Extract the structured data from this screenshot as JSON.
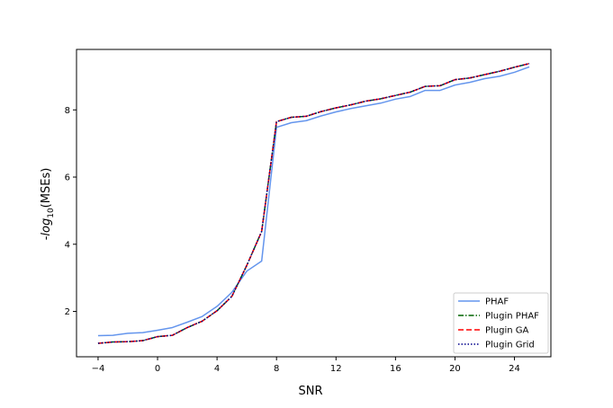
{
  "chart_data": {
    "type": "line",
    "xlabel": "SNR",
    "ylabel_prefix": "-",
    "ylabel_func": "log",
    "ylabel_sub": "10",
    "ylabel_suffix": "(MSEs)",
    "xlim": [
      -5.45,
      26.45
    ],
    "ylim": [
      0.65,
      9.8
    ],
    "xticks": [
      -4,
      0,
      4,
      8,
      12,
      16,
      20,
      24
    ],
    "xtick_labels": [
      "−4",
      "0",
      "4",
      "8",
      "12",
      "16",
      "20",
      "24"
    ],
    "yticks": [
      2,
      4,
      6,
      8
    ],
    "ytick_labels": [
      "2",
      "4",
      "6",
      "8"
    ],
    "grid": false,
    "legend_position": "lower-right",
    "x": [
      -4,
      -3,
      -2,
      -1,
      0,
      1,
      2,
      3,
      4,
      5,
      6,
      7,
      8,
      9,
      10,
      11,
      12,
      13,
      14,
      15,
      16,
      17,
      18,
      19,
      20,
      21,
      22,
      23,
      24,
      25
    ],
    "series": [
      {
        "name": "PHAF",
        "color": "#6495ed",
        "dash": "solid",
        "values": [
          1.28,
          1.29,
          1.35,
          1.37,
          1.44,
          1.52,
          1.68,
          1.85,
          2.15,
          2.57,
          3.2,
          3.5,
          7.48,
          7.62,
          7.68,
          7.82,
          7.94,
          8.04,
          8.12,
          8.2,
          8.32,
          8.4,
          8.58,
          8.58,
          8.74,
          8.82,
          8.93,
          9.0,
          9.12,
          9.28
        ]
      },
      {
        "name": "Plugin PHAF",
        "color": "#006400",
        "dash": "dashdot",
        "values": [
          1.05,
          1.09,
          1.1,
          1.13,
          1.25,
          1.29,
          1.52,
          1.71,
          2.02,
          2.45,
          3.37,
          4.38,
          7.65,
          7.78,
          7.81,
          7.95,
          8.06,
          8.15,
          8.26,
          8.33,
          8.43,
          8.53,
          8.7,
          8.72,
          8.9,
          8.95,
          9.05,
          9.15,
          9.27,
          9.38
        ]
      },
      {
        "name": "Plugin GA",
        "color": "#ff0000",
        "dash": "dashed",
        "values": [
          1.05,
          1.09,
          1.1,
          1.13,
          1.25,
          1.29,
          1.52,
          1.71,
          2.02,
          2.45,
          3.37,
          4.38,
          7.65,
          7.78,
          7.81,
          7.95,
          8.06,
          8.15,
          8.26,
          8.33,
          8.43,
          8.53,
          8.7,
          8.72,
          8.9,
          8.95,
          9.05,
          9.15,
          9.27,
          9.38
        ]
      },
      {
        "name": "Plugin Grid",
        "color": "#00008b",
        "dash": "dotted",
        "values": [
          1.05,
          1.09,
          1.1,
          1.13,
          1.25,
          1.29,
          1.52,
          1.71,
          2.02,
          2.45,
          3.37,
          4.38,
          7.65,
          7.78,
          7.81,
          7.95,
          8.06,
          8.15,
          8.26,
          8.33,
          8.43,
          8.53,
          8.7,
          8.72,
          8.9,
          8.95,
          9.05,
          9.15,
          9.27,
          9.38
        ]
      }
    ]
  }
}
